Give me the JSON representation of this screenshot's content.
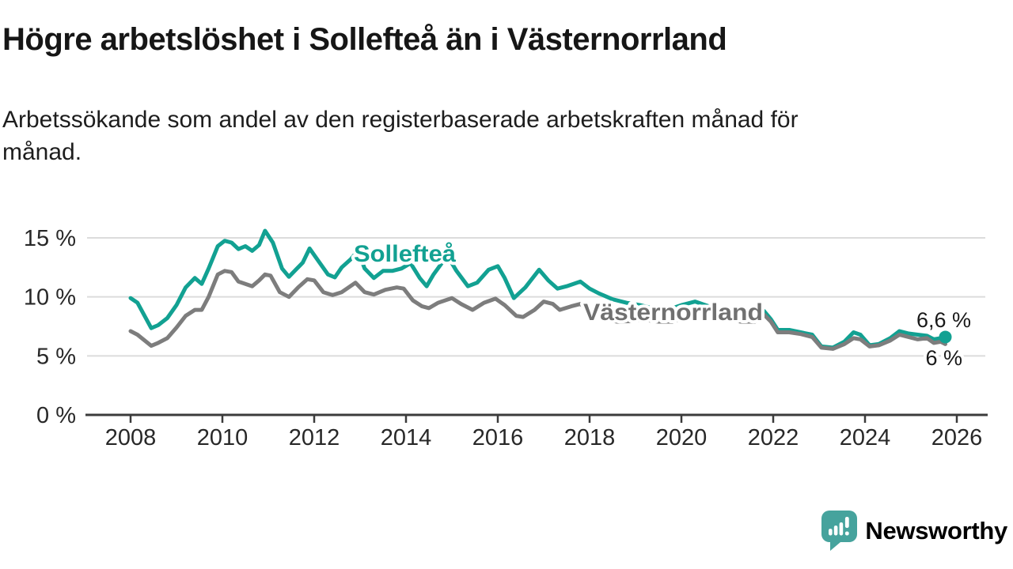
{
  "header": {
    "title": "Högre arbetslöshet i Sollefteå än i Västernorrland",
    "subtitle_lines": [
      "Arbetssökande som andel av den registerbaserade arbetskraften månad för",
      "månad."
    ]
  },
  "chart_data": {
    "type": "line",
    "title": "Högre arbetslöshet i Sollefteå än i Västernorrland",
    "subtitle": "Arbetssökande som andel av den registerbaserade arbetskraften månad för månad.",
    "unit": "%",
    "grid": "horizontal",
    "legend_position": "inline-labels",
    "xlim": [
      2007.0,
      2026.7
    ],
    "ylim": [
      0,
      16.5
    ],
    "x_ticks": [
      2008,
      2010,
      2012,
      2014,
      2016,
      2018,
      2020,
      2022,
      2024,
      2026
    ],
    "x_tick_labels": [
      "2008",
      "2010",
      "2012",
      "2014",
      "2016",
      "2018",
      "2020",
      "2022",
      "2024",
      "2026"
    ],
    "y_ticks": [
      0,
      5,
      10,
      15
    ],
    "y_tick_labels": [
      "0 %",
      "5 %",
      "10 %",
      "15 %"
    ],
    "series": [
      {
        "name": "Sollefteå",
        "color": "#12a192",
        "end_label": "6,6 %",
        "end_value": 6.6,
        "end_dot": true,
        "points": [
          [
            2008.0,
            9.9
          ],
          [
            2008.15,
            9.5
          ],
          [
            2008.45,
            7.35
          ],
          [
            2008.6,
            7.6
          ],
          [
            2008.8,
            8.2
          ],
          [
            2009.0,
            9.3
          ],
          [
            2009.2,
            10.8
          ],
          [
            2009.4,
            11.6
          ],
          [
            2009.55,
            11.1
          ],
          [
            2009.7,
            12.4
          ],
          [
            2009.9,
            14.3
          ],
          [
            2010.05,
            14.75
          ],
          [
            2010.2,
            14.6
          ],
          [
            2010.35,
            14.05
          ],
          [
            2010.5,
            14.3
          ],
          [
            2010.65,
            13.9
          ],
          [
            2010.8,
            14.4
          ],
          [
            2010.93,
            15.6
          ],
          [
            2011.1,
            14.6
          ],
          [
            2011.3,
            12.4
          ],
          [
            2011.45,
            11.7
          ],
          [
            2011.6,
            12.3
          ],
          [
            2011.75,
            12.9
          ],
          [
            2011.9,
            14.1
          ],
          [
            2012.1,
            13.0
          ],
          [
            2012.3,
            11.9
          ],
          [
            2012.45,
            11.65
          ],
          [
            2012.6,
            12.5
          ],
          [
            2012.8,
            13.2
          ],
          [
            2012.95,
            13.9
          ],
          [
            2013.1,
            12.4
          ],
          [
            2013.3,
            11.6
          ],
          [
            2013.5,
            12.2
          ],
          [
            2013.7,
            12.2
          ],
          [
            2013.9,
            12.4
          ],
          [
            2014.1,
            12.85
          ],
          [
            2014.3,
            11.6
          ],
          [
            2014.45,
            10.9
          ],
          [
            2014.6,
            11.9
          ],
          [
            2014.9,
            13.5
          ],
          [
            2015.1,
            12.2
          ],
          [
            2015.35,
            10.9
          ],
          [
            2015.55,
            11.2
          ],
          [
            2015.8,
            12.3
          ],
          [
            2016.0,
            12.6
          ],
          [
            2016.15,
            11.6
          ],
          [
            2016.35,
            9.9
          ],
          [
            2016.6,
            10.8
          ],
          [
            2016.9,
            12.3
          ],
          [
            2017.1,
            11.4
          ],
          [
            2017.3,
            10.7
          ],
          [
            2017.5,
            10.9
          ],
          [
            2017.8,
            11.3
          ],
          [
            2018.0,
            10.7
          ],
          [
            2018.2,
            10.3
          ],
          [
            2018.5,
            9.8
          ],
          [
            2018.8,
            9.5
          ],
          [
            2019.1,
            9.3
          ],
          [
            2019.4,
            9.0
          ],
          [
            2019.7,
            8.9
          ],
          [
            2020.0,
            9.3
          ],
          [
            2020.3,
            9.6
          ],
          [
            2020.6,
            9.2
          ],
          [
            2020.9,
            8.6
          ],
          [
            2021.1,
            8.1
          ],
          [
            2021.4,
            8.0
          ],
          [
            2021.6,
            8.0
          ],
          [
            2021.8,
            8.8
          ],
          [
            2021.95,
            8.1
          ],
          [
            2022.1,
            7.2
          ],
          [
            2022.35,
            7.2
          ],
          [
            2022.6,
            7.0
          ],
          [
            2022.85,
            6.8
          ],
          [
            2023.05,
            5.8
          ],
          [
            2023.3,
            5.7
          ],
          [
            2023.55,
            6.2
          ],
          [
            2023.75,
            7.0
          ],
          [
            2023.9,
            6.8
          ],
          [
            2024.1,
            5.9
          ],
          [
            2024.3,
            6.0
          ],
          [
            2024.55,
            6.5
          ],
          [
            2024.75,
            7.1
          ],
          [
            2024.95,
            6.9
          ],
          [
            2025.15,
            6.8
          ],
          [
            2025.35,
            6.7
          ],
          [
            2025.5,
            6.4
          ],
          [
            2025.65,
            6.5
          ],
          [
            2025.75,
            6.6
          ]
        ]
      },
      {
        "name": "Västernorrland",
        "color": "#7d7d7d",
        "end_label": "6 %",
        "end_value": 6.0,
        "end_dot": false,
        "points": [
          [
            2008.0,
            7.1
          ],
          [
            2008.15,
            6.8
          ],
          [
            2008.45,
            5.85
          ],
          [
            2008.6,
            6.1
          ],
          [
            2008.8,
            6.5
          ],
          [
            2009.0,
            7.4
          ],
          [
            2009.2,
            8.4
          ],
          [
            2009.4,
            8.9
          ],
          [
            2009.55,
            8.9
          ],
          [
            2009.7,
            10.0
          ],
          [
            2009.9,
            11.9
          ],
          [
            2010.05,
            12.2
          ],
          [
            2010.2,
            12.1
          ],
          [
            2010.35,
            11.3
          ],
          [
            2010.5,
            11.1
          ],
          [
            2010.65,
            10.9
          ],
          [
            2010.8,
            11.4
          ],
          [
            2010.93,
            11.9
          ],
          [
            2011.05,
            11.8
          ],
          [
            2011.25,
            10.4
          ],
          [
            2011.45,
            10.0
          ],
          [
            2011.65,
            10.8
          ],
          [
            2011.85,
            11.5
          ],
          [
            2012.0,
            11.4
          ],
          [
            2012.2,
            10.4
          ],
          [
            2012.4,
            10.15
          ],
          [
            2012.6,
            10.4
          ],
          [
            2012.9,
            11.2
          ],
          [
            2013.1,
            10.4
          ],
          [
            2013.3,
            10.2
          ],
          [
            2013.55,
            10.6
          ],
          [
            2013.8,
            10.8
          ],
          [
            2013.95,
            10.7
          ],
          [
            2014.15,
            9.7
          ],
          [
            2014.35,
            9.2
          ],
          [
            2014.5,
            9.05
          ],
          [
            2014.7,
            9.5
          ],
          [
            2015.0,
            9.9
          ],
          [
            2015.2,
            9.4
          ],
          [
            2015.45,
            8.9
          ],
          [
            2015.7,
            9.5
          ],
          [
            2015.95,
            9.85
          ],
          [
            2016.15,
            9.3
          ],
          [
            2016.4,
            8.4
          ],
          [
            2016.55,
            8.3
          ],
          [
            2016.8,
            8.9
          ],
          [
            2017.0,
            9.6
          ],
          [
            2017.2,
            9.4
          ],
          [
            2017.35,
            8.9
          ],
          [
            2017.6,
            9.2
          ],
          [
            2017.8,
            9.4
          ],
          [
            2018.0,
            8.8
          ],
          [
            2018.15,
            8.5
          ],
          [
            2018.35,
            8.1
          ],
          [
            2018.6,
            7.9
          ],
          [
            2018.9,
            7.95
          ],
          [
            2019.2,
            8.05
          ],
          [
            2019.5,
            7.9
          ],
          [
            2019.8,
            7.9
          ],
          [
            2020.1,
            8.3
          ],
          [
            2020.4,
            8.5
          ],
          [
            2020.7,
            8.3
          ],
          [
            2021.0,
            8.1
          ],
          [
            2021.3,
            7.9
          ],
          [
            2021.6,
            7.9
          ],
          [
            2021.8,
            8.5
          ],
          [
            2021.95,
            7.9
          ],
          [
            2022.1,
            7.0
          ],
          [
            2022.35,
            7.0
          ],
          [
            2022.6,
            6.85
          ],
          [
            2022.85,
            6.6
          ],
          [
            2023.05,
            5.7
          ],
          [
            2023.3,
            5.6
          ],
          [
            2023.55,
            6.0
          ],
          [
            2023.75,
            6.5
          ],
          [
            2023.9,
            6.4
          ],
          [
            2024.1,
            5.8
          ],
          [
            2024.3,
            5.9
          ],
          [
            2024.55,
            6.3
          ],
          [
            2024.75,
            6.8
          ],
          [
            2024.95,
            6.6
          ],
          [
            2025.15,
            6.4
          ],
          [
            2025.35,
            6.5
          ],
          [
            2025.5,
            6.1
          ],
          [
            2025.65,
            6.2
          ],
          [
            2025.75,
            6.0
          ]
        ]
      }
    ],
    "colors": {
      "gridline": "#dcdcdc",
      "axis": "#3b3b3b",
      "end_label_text": "#191919"
    }
  },
  "branding": {
    "logo_text": "Newsworthy",
    "logo_color": "#46a39d",
    "logo_icon": "speech-bubble-bar-chart-icon"
  }
}
